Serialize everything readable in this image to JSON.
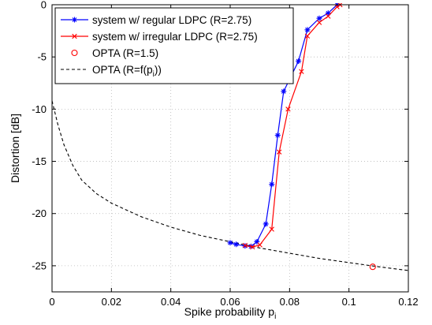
{
  "chart_data": {
    "type": "line",
    "title": "",
    "xlabel": "Spike probability p",
    "xlabel_sub": "i",
    "ylabel": "Distortion [dB]",
    "xlim": [
      0,
      0.12
    ],
    "ylim": [
      -27.5,
      0
    ],
    "grid": true,
    "legend_position": "top-left",
    "x_ticks": [
      0,
      0.02,
      0.04,
      0.06,
      0.08,
      0.1,
      0.12
    ],
    "x_tick_labels": [
      "0",
      "0.02",
      "0.04",
      "0.06",
      "0.08",
      "0.1",
      "0.12"
    ],
    "y_ticks": [
      -25,
      -20,
      -15,
      -10,
      -5,
      0
    ],
    "y_tick_labels": [
      "-25",
      "-20",
      "-15",
      "-10",
      "-5",
      "0"
    ],
    "series": [
      {
        "name": "system w/ regular LDPC (R=2.75)",
        "color": "#0000ff",
        "marker": "star",
        "line": "solid",
        "points": [
          [
            0.06,
            -22.8
          ],
          [
            0.062,
            -22.95
          ],
          [
            0.065,
            -23.1
          ],
          [
            0.067,
            -23.15
          ],
          [
            0.069,
            -22.7
          ],
          [
            0.072,
            -21.0
          ],
          [
            0.074,
            -17.2
          ],
          [
            0.076,
            -12.5
          ],
          [
            0.078,
            -8.3
          ],
          [
            0.083,
            -5.4
          ],
          [
            0.086,
            -2.4
          ],
          [
            0.09,
            -1.3
          ],
          [
            0.093,
            -0.8
          ],
          [
            0.096,
            0.0
          ]
        ]
      },
      {
        "name": "system w/ irregular LDPC (R=2.75)",
        "color": "#ff0000",
        "marker": "x",
        "line": "solid",
        "points": [
          [
            0.065,
            -23.05
          ],
          [
            0.0675,
            -23.2
          ],
          [
            0.07,
            -23.0
          ],
          [
            0.074,
            -21.5
          ],
          [
            0.0765,
            -14.1
          ],
          [
            0.0795,
            -10.0
          ],
          [
            0.084,
            -6.4
          ],
          [
            0.086,
            -3.0
          ],
          [
            0.09,
            -1.7
          ],
          [
            0.093,
            -1.1
          ],
          [
            0.096,
            -0.2
          ],
          [
            0.097,
            0.0
          ]
        ]
      },
      {
        "name": "OPTA (R=1.5)",
        "color": "#ff0000",
        "marker": "circle",
        "line": "none",
        "points": [
          [
            0.108,
            -25.1
          ]
        ]
      },
      {
        "name": "OPTA (R=f(p",
        "name_sub": "i",
        "name_suffix": "))",
        "color": "#000000",
        "marker": "none",
        "line": "dashed",
        "points": [
          [
            0.0,
            -9.2
          ],
          [
            0.002,
            -11.5
          ],
          [
            0.004,
            -13.4
          ],
          [
            0.007,
            -15.4
          ],
          [
            0.01,
            -16.8
          ],
          [
            0.015,
            -18.1
          ],
          [
            0.02,
            -19.0
          ],
          [
            0.03,
            -20.3
          ],
          [
            0.04,
            -21.3
          ],
          [
            0.05,
            -22.1
          ],
          [
            0.06,
            -22.7
          ],
          [
            0.07,
            -23.3
          ],
          [
            0.08,
            -23.8
          ],
          [
            0.09,
            -24.3
          ],
          [
            0.1,
            -24.7
          ],
          [
            0.11,
            -25.1
          ],
          [
            0.12,
            -25.45
          ]
        ]
      }
    ]
  }
}
